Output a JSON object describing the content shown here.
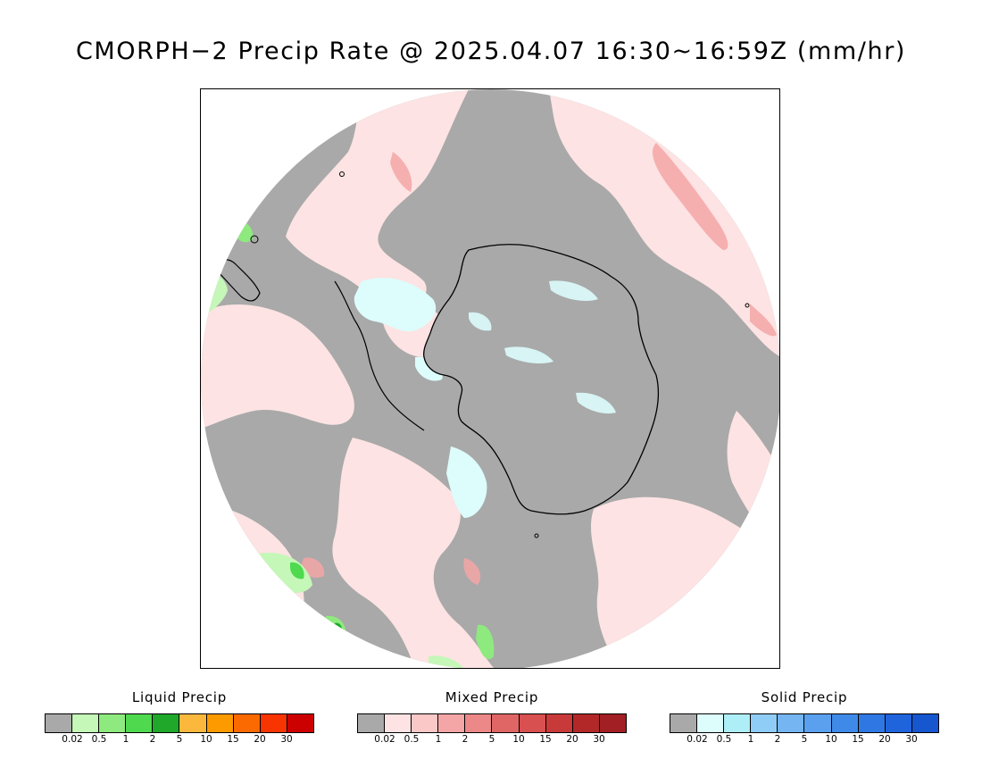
{
  "title": "CMORPH−2 Precip Rate @ 2025.04.07 16:30~16:59Z (mm/hr)",
  "legends": [
    {
      "id": "liquid",
      "title": "Liquid Precip",
      "colors": [
        "#a9a9a9",
        "#c5f7b8",
        "#8eea7e",
        "#4fd94f",
        "#1fa82a",
        "#fcb83d",
        "#fc9a00",
        "#fb6a00",
        "#f83400",
        "#cc0000"
      ],
      "ticks": [
        "0.02",
        "0.5",
        "1",
        "2",
        "5",
        "10",
        "15",
        "20",
        "30"
      ]
    },
    {
      "id": "mixed",
      "title": "Mixed Precip",
      "colors": [
        "#a9a9a9",
        "#fde3e3",
        "#fbc8c8",
        "#f4a6a6",
        "#ec8888",
        "#e06666",
        "#d85050",
        "#c83a3a",
        "#b22828",
        "#a21f24"
      ],
      "ticks": [
        "0.02",
        "0.5",
        "1",
        "2",
        "5",
        "10",
        "15",
        "20",
        "30"
      ]
    },
    {
      "id": "solid",
      "title": "Solid Precip",
      "colors": [
        "#a9a9a9",
        "#ddfcfc",
        "#aeeef7",
        "#90cdf6",
        "#74b5f2",
        "#5ba0ee",
        "#3f8ae8",
        "#2f78e3",
        "#2064dc",
        "#1656cf"
      ],
      "ticks": [
        "0.02",
        "0.5",
        "1",
        "2",
        "5",
        "10",
        "15",
        "20",
        "30"
      ]
    }
  ],
  "map": {
    "projection": "south-polar-stereographic",
    "no_precip_color": "#a9a9a9",
    "mixed_light_color": "#fde3e3",
    "solid_light_color": "#ddfcfc",
    "coastline_color": "#000000"
  }
}
